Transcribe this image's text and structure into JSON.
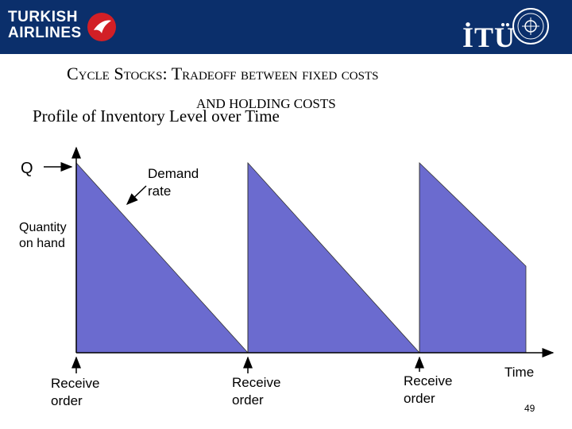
{
  "header": {
    "brand_line1": "TURKISH",
    "brand_line2": "AIRLINES",
    "university_text": "İTÜ",
    "brand_color": "#0b2f6b",
    "logo_icon": "turkish-airlines-bird-logo",
    "seal_icon": "itu-seal"
  },
  "slide": {
    "title_line1": "Cycle Stocks: Tradeoff between fixed costs",
    "title_line2": "AND HOLDING COSTS",
    "subtitle": "Profile of Inventory Level over Time",
    "page_number": "49"
  },
  "diagram": {
    "fill_color": "#6b6bcf",
    "q_label": "Q",
    "demand_rate_label": "Demand rate",
    "quantity_on_hand_label": "Quantity on hand",
    "receive_order_label": "Receive order",
    "time_label": "Time"
  }
}
